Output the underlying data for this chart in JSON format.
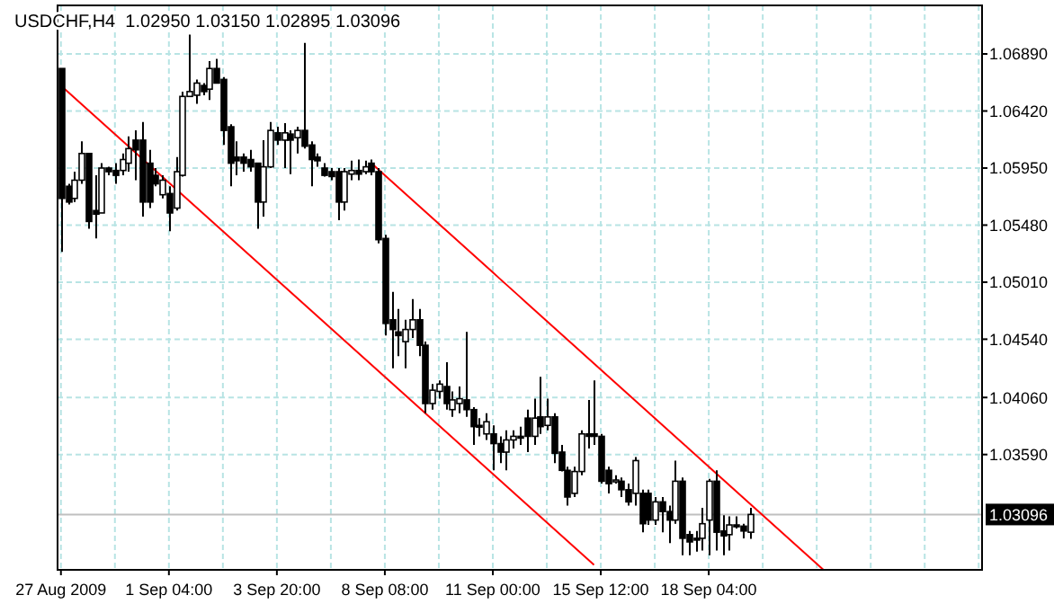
{
  "chart_data": {
    "type": "candlestick",
    "title": "USDCHF,H4  1.02950 1.03150 1.02895 1.03096",
    "categories": [
      "27 Aug 2009",
      null,
      null,
      null,
      null,
      null,
      null,
      null,
      null,
      null,
      null,
      null,
      null,
      null,
      null,
      null,
      "1 Sep 04:00",
      null,
      null,
      null,
      null,
      null,
      null,
      null,
      null,
      null,
      null,
      null,
      null,
      null,
      null,
      null,
      "3 Sep 20:00",
      null,
      null,
      null,
      null,
      null,
      null,
      null,
      null,
      null,
      null,
      null,
      null,
      null,
      null,
      null,
      "8 Sep 08:00",
      null,
      null,
      null,
      null,
      null,
      null,
      null,
      null,
      null,
      null,
      null,
      null,
      null,
      null,
      null,
      "11 Sep 00:00",
      null,
      null,
      null,
      null,
      null,
      null,
      null,
      null,
      null,
      null,
      null,
      null,
      null,
      null,
      null,
      "15 Sep 12:00",
      null,
      null,
      null,
      null,
      null,
      null,
      null,
      null,
      null,
      null,
      null,
      null,
      null,
      null,
      null,
      "18 Sep 04:00",
      null,
      null,
      null,
      null,
      null,
      null,
      null,
      null,
      null,
      null,
      null,
      null,
      null,
      null,
      null,
      null,
      null,
      null,
      null,
      null,
      null,
      null,
      null,
      null,
      null,
      null,
      null,
      null,
      null,
      null,
      null,
      null,
      null,
      null,
      null,
      null,
      null,
      null,
      null,
      null
    ],
    "ohlc": [
      [
        1.0677,
        1.0677,
        1.0526,
        1.057
      ],
      [
        1.058,
        1.0582,
        1.0565,
        1.0567
      ],
      [
        1.057,
        1.0592,
        1.0567,
        1.0585
      ],
      [
        1.0585,
        1.0617,
        1.0582,
        1.0607
      ],
      [
        1.0607,
        1.0607,
        1.0545,
        1.0551
      ],
      [
        1.056,
        1.0589,
        1.0537,
        1.0557
      ],
      [
        1.0558,
        1.0599,
        1.0558,
        1.0595
      ],
      [
        1.0595,
        1.0596,
        1.0589,
        1.0592
      ],
      [
        1.0593,
        1.0599,
        1.0582,
        1.0589
      ],
      [
        1.0593,
        1.0607,
        1.0589,
        1.0602
      ],
      [
        1.0599,
        1.0621,
        1.0592,
        1.0611
      ],
      [
        1.0618,
        1.0626,
        1.0585,
        1.061
      ],
      [
        1.0618,
        1.0633,
        1.0555,
        1.0567
      ],
      [
        1.0599,
        1.061,
        1.0562,
        1.0567
      ],
      [
        1.0589,
        1.0595,
        1.058,
        1.0582
      ],
      [
        1.0573,
        1.0589,
        1.057,
        1.0585
      ],
      [
        1.0574,
        1.058,
        1.0543,
        1.0558
      ],
      [
        1.0562,
        1.0604,
        1.056,
        1.0592
      ],
      [
        1.0589,
        1.0658,
        1.0588,
        1.0654
      ],
      [
        1.0654,
        1.0705,
        1.0654,
        1.0658
      ],
      [
        1.0655,
        1.0668,
        1.0648,
        1.0665
      ],
      [
        1.0663,
        1.0665,
        1.0655,
        1.0658
      ],
      [
        1.066,
        1.0683,
        1.0651,
        1.0677
      ],
      [
        1.0677,
        1.0685,
        1.0665,
        1.0665
      ],
      [
        1.0668,
        1.067,
        1.0614,
        1.0626
      ],
      [
        1.0629,
        1.0631,
        1.058,
        1.0599
      ],
      [
        1.0604,
        1.0617,
        1.0589,
        1.0601
      ],
      [
        1.0604,
        1.0607,
        1.0592,
        1.0599
      ],
      [
        1.0602,
        1.061,
        1.0592,
        1.0596
      ],
      [
        1.0599,
        1.0599,
        1.0545,
        1.0567
      ],
      [
        1.0567,
        1.0618,
        1.0555,
        1.0596
      ],
      [
        1.0596,
        1.0633,
        1.0595,
        1.0626
      ],
      [
        1.0624,
        1.0629,
        1.0614,
        1.0618
      ],
      [
        1.0618,
        1.0632,
        1.0595,
        1.0624
      ],
      [
        1.0623,
        1.0626,
        1.059,
        1.0618
      ],
      [
        1.062,
        1.0629,
        1.0607,
        1.0626
      ],
      [
        1.0626,
        1.0698,
        1.0611,
        1.0613
      ],
      [
        1.0614,
        1.0617,
        1.058,
        1.0602
      ],
      [
        1.0604,
        1.0607,
        1.0596,
        1.0601
      ],
      [
        1.0595,
        1.0599,
        1.0588,
        1.0589
      ],
      [
        1.0592,
        1.0595,
        1.0585,
        1.0588
      ],
      [
        1.0592,
        1.0595,
        1.0552,
        1.0567
      ],
      [
        1.0567,
        1.0595,
        1.056,
        1.0592
      ],
      [
        1.059,
        1.0601,
        1.0585,
        1.0593
      ],
      [
        1.0593,
        1.0602,
        1.0585,
        1.059
      ],
      [
        1.0592,
        1.0601,
        1.059,
        1.0596
      ],
      [
        1.0599,
        1.0602,
        1.0589,
        1.0592
      ],
      [
        1.0592,
        1.0595,
        1.0533,
        1.0536
      ],
      [
        1.0537,
        1.054,
        1.0457,
        1.0467
      ],
      [
        1.047,
        1.0493,
        1.043,
        1.0462
      ],
      [
        1.046,
        1.0479,
        1.044,
        1.0457
      ],
      [
        1.0452,
        1.047,
        1.043,
        1.0462
      ],
      [
        1.0462,
        1.0487,
        1.0455,
        1.047
      ],
      [
        1.047,
        1.0479,
        1.044,
        1.0449
      ],
      [
        1.0449,
        1.0452,
        1.0393,
        1.0401
      ],
      [
        1.0401,
        1.0417,
        1.0396,
        1.0412
      ],
      [
        1.0411,
        1.042,
        1.0405,
        1.0417
      ],
      [
        1.0415,
        1.0435,
        1.0396,
        1.0401
      ],
      [
        1.0396,
        1.0411,
        1.039,
        1.0404
      ],
      [
        1.0401,
        1.0415,
        1.0393,
        1.0405
      ],
      [
        1.0404,
        1.046,
        1.039,
        1.0396
      ],
      [
        1.0396,
        1.0398,
        1.0367,
        1.0382
      ],
      [
        1.0383,
        1.0389,
        1.0374,
        1.0382
      ],
      [
        1.0376,
        1.0393,
        1.0371,
        1.0386
      ],
      [
        1.0376,
        1.0383,
        1.0346,
        1.0368
      ],
      [
        1.0368,
        1.0374,
        1.0352,
        1.0361
      ],
      [
        1.0361,
        1.0379,
        1.0346,
        1.0371
      ],
      [
        1.0371,
        1.0379,
        1.0364,
        1.0374
      ],
      [
        1.0374,
        1.0382,
        1.0367,
        1.0373
      ],
      [
        1.0389,
        1.0396,
        1.0361,
        1.0374
      ],
      [
        1.0374,
        1.0405,
        1.0367,
        1.0389
      ],
      [
        1.039,
        1.0423,
        1.0376,
        1.0382
      ],
      [
        1.0383,
        1.0405,
        1.0379,
        1.039
      ],
      [
        1.039,
        1.0393,
        1.0352,
        1.036
      ],
      [
        1.0361,
        1.0367,
        1.0345,
        1.0346
      ],
      [
        1.0346,
        1.0349,
        1.0317,
        1.0324
      ],
      [
        1.0327,
        1.0349,
        1.0324,
        1.0345
      ],
      [
        1.0345,
        1.0379,
        1.0342,
        1.0376
      ],
      [
        1.0376,
        1.0404,
        1.0364,
        1.0374
      ],
      [
        1.0376,
        1.042,
        1.0367,
        1.0374
      ],
      [
        1.0374,
        1.0376,
        1.0335,
        1.0337
      ],
      [
        1.0346,
        1.0349,
        1.0327,
        1.0335
      ],
      [
        1.0337,
        1.0342,
        1.0335,
        1.0338
      ],
      [
        1.0337,
        1.034,
        1.0324,
        1.033
      ],
      [
        1.033,
        1.0335,
        1.0317,
        1.032
      ],
      [
        1.0327,
        1.0357,
        1.0317,
        1.0354
      ],
      [
        1.0327,
        1.033,
        1.0295,
        1.0302
      ],
      [
        1.0327,
        1.033,
        1.0301,
        1.0305
      ],
      [
        1.0305,
        1.0324,
        1.0301,
        1.032
      ],
      [
        1.032,
        1.0324,
        1.0295,
        1.0312
      ],
      [
        1.0312,
        1.0317,
        1.0286,
        1.0305
      ],
      [
        1.0305,
        1.0354,
        1.0302,
        1.0337
      ],
      [
        1.0337,
        1.034,
        1.0276,
        1.029
      ],
      [
        1.0293,
        1.0296,
        1.0276,
        1.0287
      ],
      [
        1.029,
        1.0296,
        1.0279,
        1.0289
      ],
      [
        1.029,
        1.0315,
        1.028,
        1.0302
      ],
      [
        1.0305,
        1.0339,
        1.0276,
        1.0337
      ],
      [
        1.0337,
        1.0346,
        1.028,
        1.0295
      ],
      [
        1.0296,
        1.0309,
        1.0276,
        1.0292
      ],
      [
        1.0293,
        1.0308,
        1.028,
        1.0301
      ],
      [
        1.0301,
        1.0308,
        1.0298,
        1.03
      ],
      [
        1.03,
        1.0302,
        1.029,
        1.0296
      ],
      [
        1.0295,
        1.0315,
        1.02895,
        1.03096
      ],
      null,
      null,
      null,
      null,
      null,
      null,
      null,
      null,
      null,
      null,
      null,
      null,
      null,
      null,
      null,
      null,
      null,
      null,
      null,
      null,
      null,
      null,
      null,
      null,
      null,
      null,
      null,
      null,
      null,
      null,
      null,
      null,
      null,
      null
    ],
    "series": [
      {
        "type": "line",
        "color": "#ff0000",
        "values": [
          null,
          null,
          null,
          null,
          null,
          null,
          null,
          null,
          null,
          null,
          null,
          null,
          null,
          null,
          null,
          null,
          null,
          null,
          null,
          null,
          null,
          null,
          null,
          null,
          null,
          null,
          null,
          null,
          null,
          null,
          null,
          null,
          null,
          null,
          null,
          null,
          null,
          null,
          null,
          null,
          null,
          null,
          null,
          null,
          null,
          null,
          1.0599,
          1.0594,
          1.0589,
          1.0584,
          1.0579,
          1.0574,
          1.0569,
          1.0564,
          1.0559,
          1.0554,
          1.0549,
          1.0544,
          1.0539,
          1.0534,
          1.0529,
          1.0524,
          1.0519,
          1.0514,
          1.0509,
          1.0504,
          1.0499,
          1.0494,
          1.0489,
          1.0484,
          1.0479,
          1.0474,
          1.0469,
          1.0464,
          1.0459,
          1.0454,
          1.0449,
          1.0444,
          1.0439,
          1.0434,
          1.0429,
          1.0424,
          1.0419,
          1.0414,
          1.0409,
          1.0404,
          1.0399,
          1.0394,
          1.0389,
          1.0384,
          1.0379,
          1.0374,
          1.0369,
          1.0364,
          1.0359,
          1.0354,
          1.0349,
          1.0344,
          1.0339,
          1.0334,
          1.0329,
          1.0324,
          1.0319,
          1.0314,
          1.0309,
          1.0304,
          1.0299,
          1.0294,
          1.0289,
          1.0284,
          1.0279,
          1.0274,
          1.0269,
          1.0264,
          null,
          null,
          null,
          null,
          null,
          null,
          null,
          null,
          null,
          null,
          null,
          null,
          null,
          null,
          null,
          null,
          null,
          null,
          null,
          null,
          null,
          null,
          null
        ]
      },
      {
        "type": "line",
        "color": "#ff0000",
        "values": [
          1.0663,
          1.0658,
          1.0653,
          1.0648,
          1.0643,
          1.0638,
          1.0633,
          1.0628,
          1.0623,
          1.0618,
          1.0613,
          1.0608,
          1.0603,
          1.0598,
          1.0593,
          1.0588,
          1.0583,
          1.0578,
          1.0573,
          1.0568,
          1.0563,
          1.0558,
          1.0553,
          1.0548,
          1.0543,
          1.0538,
          1.0533,
          1.0528,
          1.0523,
          1.0518,
          1.0513,
          1.0508,
          1.0503,
          1.0498,
          1.0493,
          1.0488,
          1.0483,
          1.0478,
          1.0473,
          1.0468,
          1.0463,
          1.0458,
          1.0453,
          1.0448,
          1.0443,
          1.0438,
          1.0433,
          1.0428,
          1.0423,
          1.0418,
          1.0413,
          1.0408,
          1.0403,
          1.0398,
          1.0393,
          1.0388,
          1.0383,
          1.0378,
          1.0373,
          1.0368,
          1.0363,
          1.0358,
          1.0353,
          1.0348,
          1.0343,
          1.0338,
          1.0333,
          1.0328,
          1.0323,
          1.0318,
          1.0313,
          1.0308,
          1.0303,
          1.0298,
          1.0293,
          1.0288,
          1.0283,
          1.0278,
          1.0273,
          1.0268,
          null,
          null,
          null,
          null,
          null,
          null,
          null,
          null,
          null,
          null,
          null,
          null,
          null,
          null,
          null,
          null,
          null,
          null,
          null,
          null,
          null,
          null,
          null,
          null,
          null,
          null,
          null,
          null,
          null,
          null,
          null,
          null,
          null,
          null,
          null,
          null,
          null,
          null,
          null,
          null,
          null,
          null,
          null,
          null,
          null,
          null,
          null,
          null,
          null,
          null,
          null,
          null,
          null,
          null,
          null,
          null,
          null
        ]
      }
    ],
    "ylim": [
      1.0264,
      1.0729
    ],
    "yticks": [
      {
        "value": 1.0689,
        "label": "1.06890"
      },
      {
        "value": 1.0642,
        "label": "1.06420"
      },
      {
        "value": 1.0595,
        "label": "1.05950"
      },
      {
        "value": 1.0548,
        "label": "1.05480"
      },
      {
        "value": 1.0501,
        "label": "1.05010"
      },
      {
        "value": 1.0454,
        "label": "1.04540"
      },
      {
        "value": 1.0406,
        "label": "1.04060"
      },
      {
        "value": 1.0359,
        "label": "1.03590"
      }
    ],
    "ref_lines": [
      {
        "axis": "y",
        "value": 1.03096,
        "label": "1.03096",
        "color": "#c0c0c0"
      }
    ],
    "grid": true
  }
}
